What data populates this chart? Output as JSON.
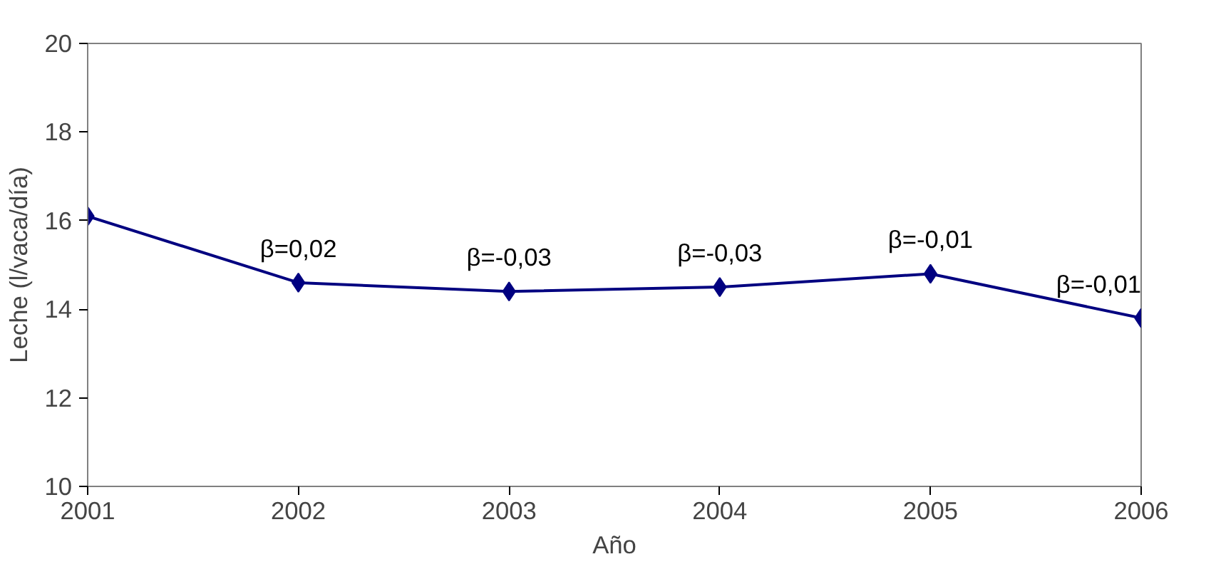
{
  "chart_data": {
    "type": "line",
    "xlabel": "Año",
    "ylabel": "Leche (l/vaca/día)",
    "x": [
      2001,
      2002,
      2003,
      2004,
      2005,
      2006
    ],
    "series": [
      {
        "color": "#000080",
        "values": [
          16.1,
          14.6,
          14.4,
          14.5,
          14.8,
          13.8
        ]
      }
    ],
    "xlim": [
      2001,
      2006
    ],
    "xticks": [
      2001,
      2002,
      2003,
      2004,
      2005,
      2006
    ],
    "ylim": [
      10,
      20
    ],
    "yticks": [
      10,
      12,
      14,
      16,
      18,
      20
    ],
    "marker": "diamond",
    "line_style": "solid",
    "annotations": [
      {
        "text": "β=0,02",
        "x": 2002,
        "y": 14.6
      },
      {
        "text": "β=-0,03",
        "x": 2003,
        "y": 14.4
      },
      {
        "text": "β=-0,03",
        "x": 2004,
        "y": 14.5
      },
      {
        "text": "β=-0,01",
        "x": 2005,
        "y": 14.8
      },
      {
        "text": "β=-0,01",
        "x": 2006,
        "y": 13.8
      }
    ]
  }
}
